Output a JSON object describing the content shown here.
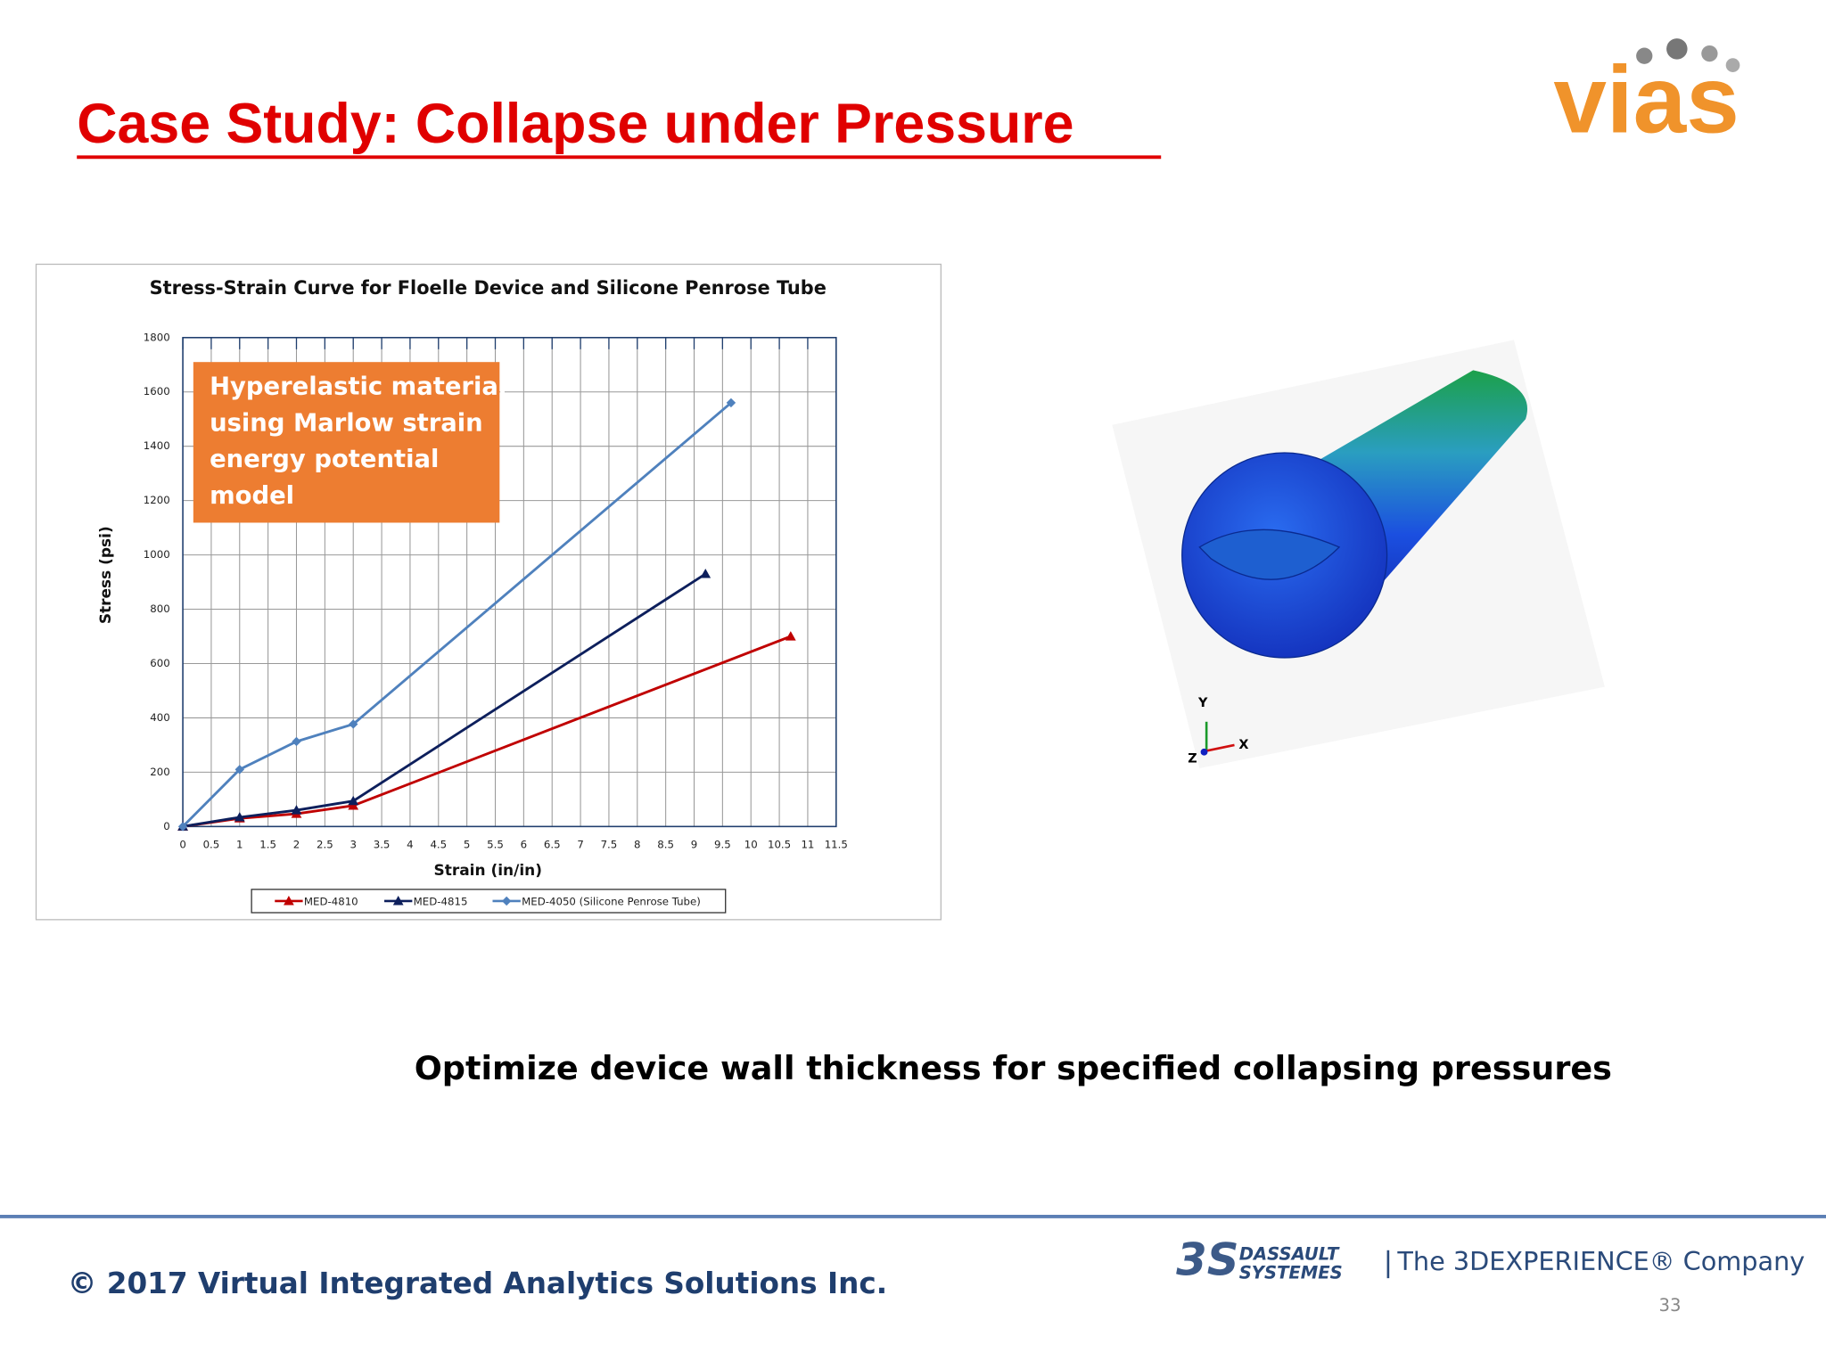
{
  "slide_title": "Case Study: Collapse under Pressure",
  "logo": "vias",
  "chart_data": {
    "type": "line",
    "title": "Stress-Strain Curve for Floelle Device and Silicone Penrose Tube",
    "x_label": "Strain (in/in)",
    "y_label": "Stress (psi)",
    "xlim": [
      0,
      11.5
    ],
    "xticks": [
      0,
      0.5,
      1,
      1.5,
      2,
      2.5,
      3,
      3.5,
      4,
      4.5,
      5,
      5.5,
      6,
      6.5,
      7,
      7.5,
      8,
      8.5,
      9,
      9.5,
      10,
      10.5,
      11,
      11.5
    ],
    "ylim": [
      0,
      1800
    ],
    "yticks": [
      0,
      200,
      400,
      600,
      800,
      1000,
      1200,
      1400,
      1600,
      1800
    ],
    "grid": true,
    "legend": "bottom",
    "annotation": [
      "Hyperelastic material",
      "using Marlow strain",
      "energy potential",
      "model"
    ],
    "series": [
      {
        "name": "MED-4810",
        "color": "#c00000",
        "marker": "triangle",
        "x": [
          0,
          1,
          2,
          3,
          10.7
        ],
        "values": [
          0,
          30,
          47,
          77,
          700
        ]
      },
      {
        "name": "MED-4815",
        "color": "#0d1f5c",
        "marker": "triangle",
        "x": [
          0,
          1,
          2,
          3,
          9.2
        ],
        "values": [
          0,
          34,
          60,
          94,
          930
        ]
      },
      {
        "name": "MED-4050 (Silicone Penrose Tube)",
        "color": "#4f81bd",
        "marker": "diamond",
        "x": [
          0,
          1,
          2,
          3,
          9.65
        ],
        "values": [
          0,
          210,
          313,
          377,
          1560
        ]
      }
    ]
  },
  "model_axes": {
    "y": "Y",
    "x": "X",
    "z": "Z"
  },
  "body_text": "Optimize device wall thickness for specified collapsing pressures",
  "footer": {
    "copyright": "© 2017 Virtual Integrated Analytics Solutions Inc.",
    "brand_line1": "DASSAULT",
    "brand_line2": "SYSTEMES",
    "tagline": "The 3DEXPERIENCE® Company",
    "page": "33"
  }
}
